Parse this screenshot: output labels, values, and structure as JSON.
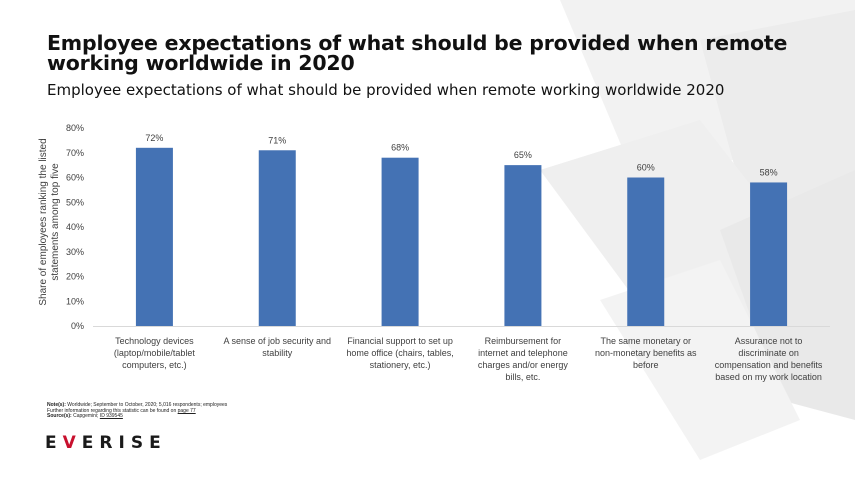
{
  "title": "Employee expectations of what should be provided when remote working worldwide in 2020",
  "subtitle": "Employee expectations of what should be provided when remote working worldwide 2020",
  "notes": {
    "note_label": "Note(s):",
    "note_text": " Worldwide; September to October, 2020; 5,016 respondents; employees",
    "further_info_pre": "Further information regarding this statistic can be found on ",
    "further_info_link": "page 77",
    "source_label": "Source(s):",
    "source_text": " Capgemini; ",
    "source_id": "ID 939545"
  },
  "logo": {
    "pre": "E",
    "accent": "V",
    "post": "ERISE"
  },
  "colors": {
    "bar": "#4472b4",
    "axis_text": "#404040",
    "accent": "#c8102e"
  },
  "chart_data": {
    "type": "bar",
    "ylabel": "Share of employees ranking the listed statements among top five",
    "ylim": [
      0,
      80
    ],
    "yticks": [
      "0%",
      "10%",
      "20%",
      "30%",
      "40%",
      "50%",
      "60%",
      "70%",
      "80%"
    ],
    "grid": false,
    "categories": [
      [
        "Technology devices",
        "(laptop/mobile/tablet",
        "computers, etc.)"
      ],
      [
        "A sense of job security and",
        "stability"
      ],
      [
        "Financial support to set up",
        "home office (chairs, tables,",
        "stationery, etc.)"
      ],
      [
        "Reimbursement for",
        "internet and telephone",
        "charges and/or energy",
        "bills, etc."
      ],
      [
        "The same monetary or",
        "non-monetary benefits as",
        "before"
      ],
      [
        "Assurance not to",
        "discriminate on",
        "compensation and benefits",
        "based on my work location"
      ]
    ],
    "values": [
      72,
      71,
      68,
      65,
      60,
      58
    ],
    "data_labels": [
      "72%",
      "71%",
      "68%",
      "65%",
      "60%",
      "58%"
    ]
  }
}
